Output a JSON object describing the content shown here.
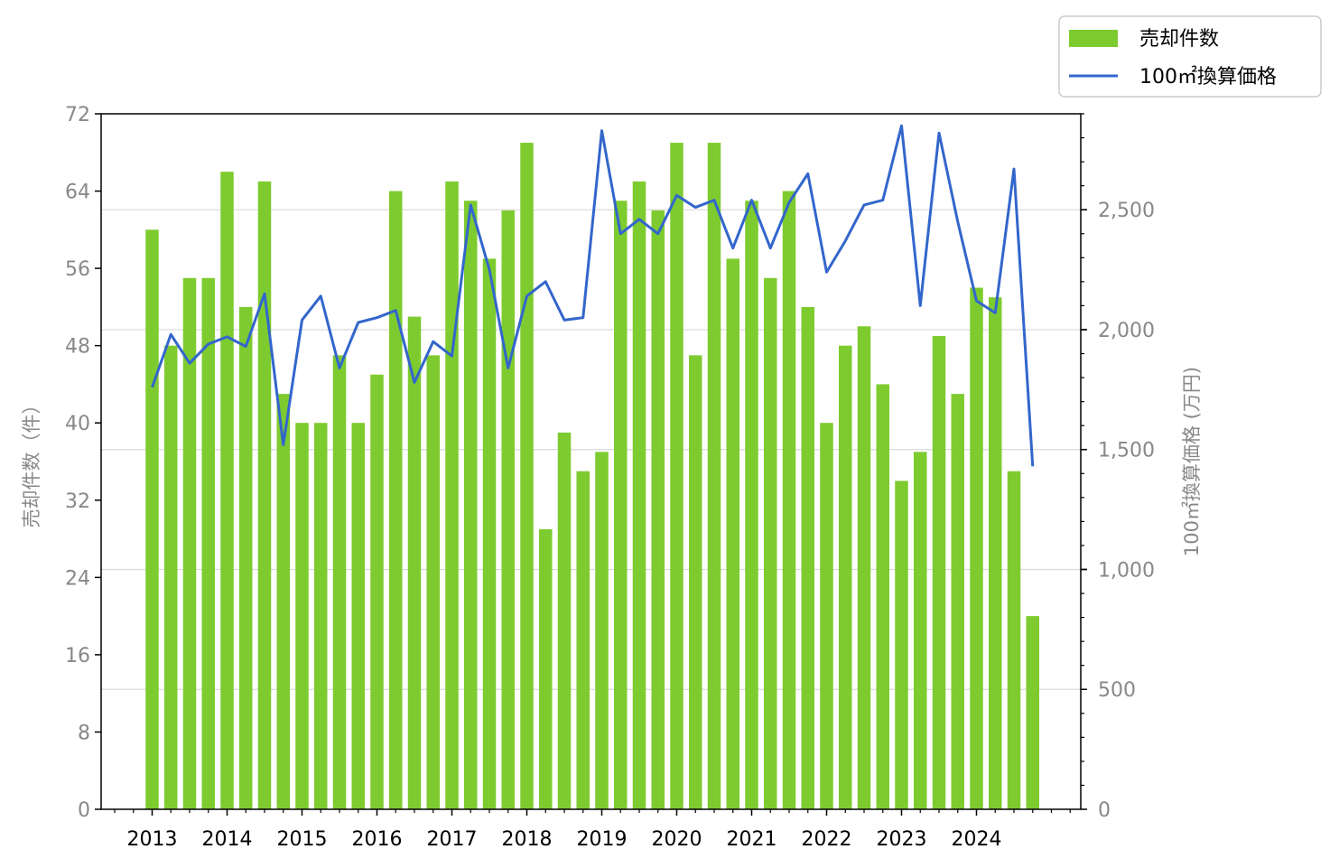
{
  "chart_data": {
    "type": "bar",
    "x_ticks": [
      "2013",
      "2014",
      "2015",
      "2016",
      "2017",
      "2018",
      "2019",
      "2020",
      "2021",
      "2022",
      "2023",
      "2024"
    ],
    "left_axis": {
      "label": "売却件数（件）",
      "lim": [
        0,
        72
      ],
      "ticks": [
        "0",
        "8",
        "16",
        "24",
        "32",
        "40",
        "48",
        "56",
        "64",
        "72"
      ]
    },
    "right_axis": {
      "label": "100㎡換算価格 (万円)",
      "lim": [
        0,
        2900
      ],
      "ticks": [
        "0",
        "500",
        "1,000",
        "1,500",
        "2,000",
        "2,500"
      ]
    },
    "legend": {
      "position": "top-right",
      "bar_label": "売却件数",
      "line_label": "100㎡換算価格"
    },
    "grid": "horizontal",
    "series": [
      {
        "name": "売却件数",
        "kind": "bar",
        "axis": "left",
        "color": "#7ecb2f",
        "values": [
          60,
          48,
          55,
          55,
          66,
          52,
          65,
          43,
          40,
          40,
          47,
          40,
          45,
          64,
          51,
          47,
          65,
          63,
          57,
          62,
          69,
          29,
          39,
          35,
          37,
          63,
          65,
          62,
          69,
          47,
          69,
          57,
          63,
          55,
          64,
          52,
          40,
          48,
          50,
          44,
          34,
          37,
          49,
          43,
          54,
          53,
          35,
          20
        ]
      },
      {
        "name": "100㎡換算価格",
        "kind": "line",
        "axis": "right",
        "color": "#3366cc",
        "values": [
          1760,
          1980,
          1860,
          1940,
          1970,
          1930,
          2150,
          1520,
          2040,
          2140,
          1840,
          2030,
          2050,
          2080,
          1780,
          1950,
          1890,
          2520,
          2250,
          1840,
          2140,
          2200,
          2040,
          2050,
          2830,
          2400,
          2460,
          2400,
          2560,
          2510,
          2540,
          2340,
          2540,
          2340,
          2530,
          2650,
          2240,
          2370,
          2520,
          2540,
          2850,
          2100,
          2820,
          2450,
          2120,
          2070,
          2670,
          1430
        ]
      }
    ]
  }
}
